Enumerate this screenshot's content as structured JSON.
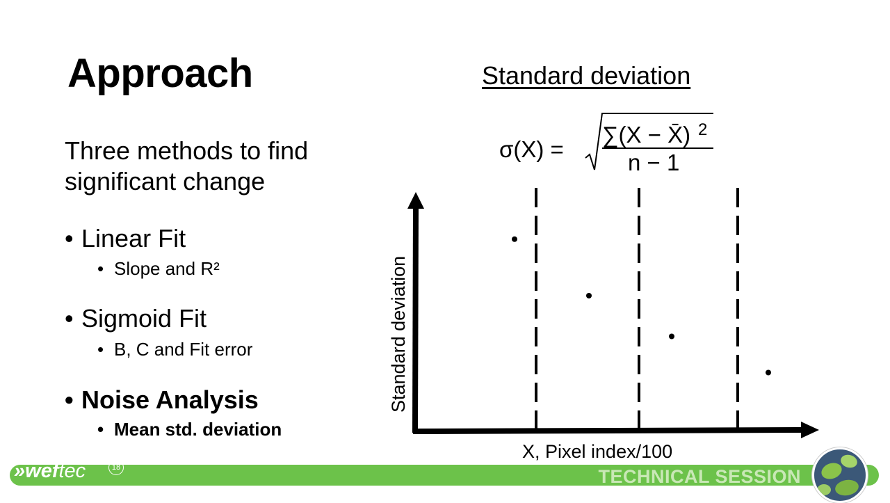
{
  "slide": {
    "title": "Approach",
    "subtitle": "Three methods to find significant change",
    "bullets": [
      {
        "label": "Linear Fit",
        "sub": "Slope and R²"
      },
      {
        "label": "Sigmoid Fit",
        "sub": "B, C and Fit error"
      },
      {
        "label": "Noise Analysis",
        "sub": "Mean std. deviation"
      }
    ]
  },
  "chart": {
    "heading": "Standard deviation",
    "formula": {
      "lhs": "σ(X) =",
      "numerator": "∑(X − X̄)",
      "exponent": "2",
      "denominator": "n − 1"
    },
    "ylabel": "Standard deviation",
    "xlabel": "X, Pixel index/100"
  },
  "chart_data": {
    "type": "scatter",
    "xlabel": "X, Pixel index/100",
    "ylabel": "Standard deviation",
    "points": [
      {
        "x": 1,
        "y": 0.85
      },
      {
        "x": 2,
        "y": 0.6
      },
      {
        "x": 3,
        "y": 0.42
      },
      {
        "x": 4,
        "y": 0.26
      }
    ],
    "dashed_dividers": 3,
    "grid": false
  },
  "footer": {
    "logo_main": "wef",
    "logo_tec": "tec",
    "logo_badge": "18",
    "session": "TECHNICAL SESSION"
  },
  "colors": {
    "footer_green": "#6cc24a",
    "footer_text": "#c9e8b6"
  }
}
